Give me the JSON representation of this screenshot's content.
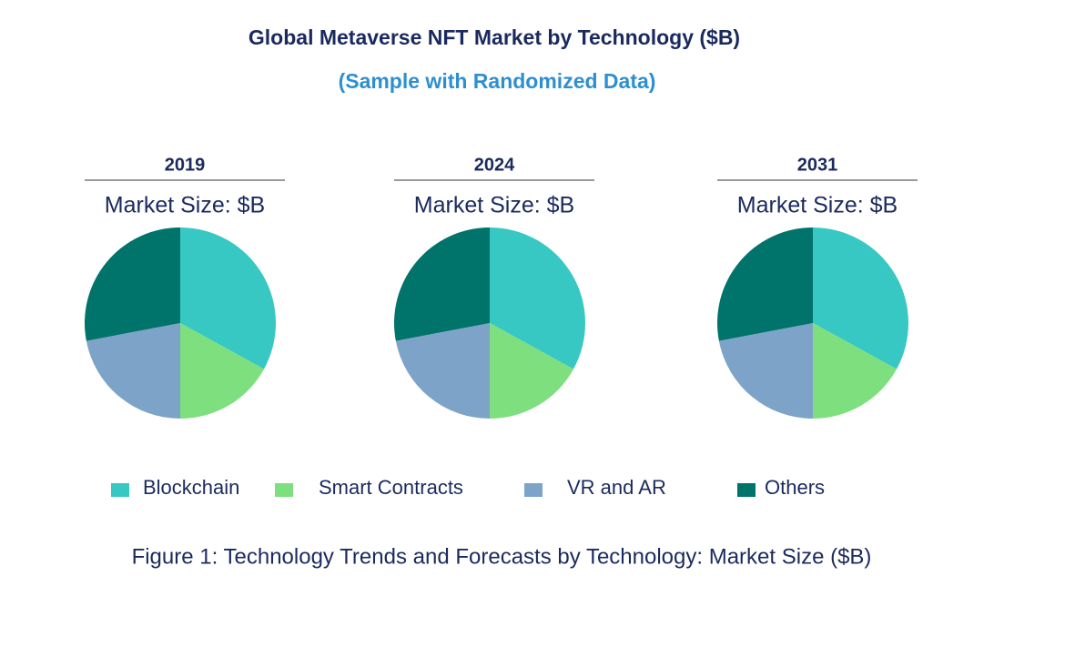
{
  "header": {
    "title": "Global Metaverse NFT Market by Technology ($B)",
    "subtitle": "(Sample with Randomized Data)"
  },
  "chart_data": [
    {
      "type": "pie",
      "title": "2019",
      "subtitle": "Market Size: $B",
      "categories": [
        "Blockchain",
        "Smart Contracts",
        "VR and AR",
        "Others"
      ],
      "values": [
        33,
        17,
        22,
        28
      ],
      "colors": [
        "#38c8c4",
        "#7ddf7d",
        "#7ea3c8",
        "#00736b"
      ]
    },
    {
      "type": "pie",
      "title": "2024",
      "subtitle": "Market Size: $B",
      "categories": [
        "Blockchain",
        "Smart Contracts",
        "VR and AR",
        "Others"
      ],
      "values": [
        33,
        17,
        22,
        28
      ],
      "colors": [
        "#38c8c4",
        "#7ddf7d",
        "#7ea3c8",
        "#00736b"
      ]
    },
    {
      "type": "pie",
      "title": "2031",
      "subtitle": "Market Size: $B",
      "categories": [
        "Blockchain",
        "Smart Contracts",
        "VR and AR",
        "Others"
      ],
      "values": [
        33,
        17,
        22,
        28
      ],
      "colors": [
        "#38c8c4",
        "#7ddf7d",
        "#7ea3c8",
        "#00736b"
      ]
    }
  ],
  "caption": "Figure 1: Technology Trends and Forecasts by Technology: Market Size ($B)"
}
